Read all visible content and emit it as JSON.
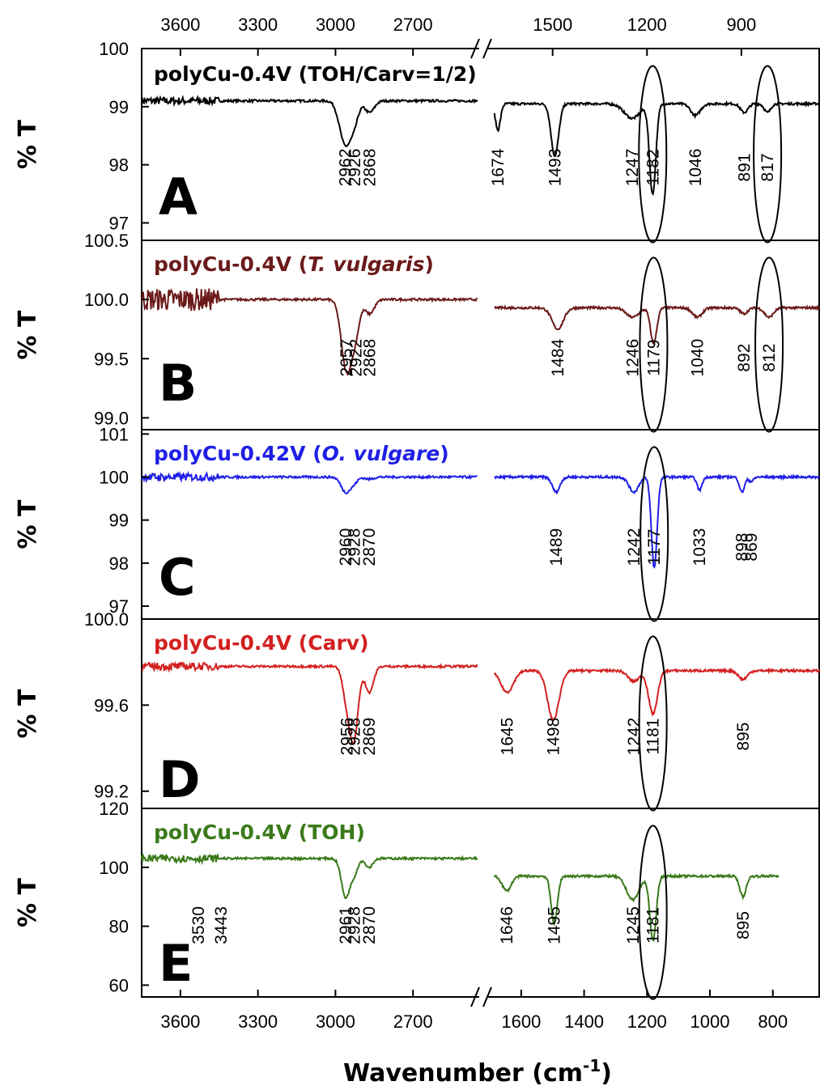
{
  "chart_data": {
    "type": "line",
    "xlabel": "Wavenumber (cm",
    "xlabel_sup": "-1",
    "xlabel_close": ")",
    "ylabel": "% T",
    "x_axis_break": true,
    "x_range_left": [
      3750,
      2450
    ],
    "x_range_right": [
      1700,
      650
    ],
    "top_ticks_left": [
      "3600",
      "3300",
      "3000",
      "2700"
    ],
    "top_ticks_right": [
      "1500",
      "1200",
      "900"
    ],
    "bottom_ticks_left": [
      "3600",
      "3300",
      "3000",
      "2700"
    ],
    "bottom_ticks_right": [
      "1600",
      "1400",
      "1200",
      "1000",
      "800"
    ],
    "panels": [
      {
        "letter": "A",
        "title_parts": [
          {
            "text": "polyCu-0.4V (TOH/Carv=1/2)",
            "italic": false
          }
        ],
        "color": "#000000",
        "ylim": [
          96.7,
          100
        ],
        "yticks": [
          "100",
          "99",
          "98",
          "97"
        ],
        "peaks": [
          "2962",
          "2926",
          "2868",
          "1674",
          "1493",
          "1247",
          "1182",
          "1046",
          "891",
          "817"
        ],
        "ellipse_peaks": [
          "1182",
          "817"
        ],
        "baseline_left": 99.1,
        "baseline_right": 99.05,
        "bands": [
          {
            "x": 2962,
            "depth": 0.75,
            "width": 22
          },
          {
            "x": 2926,
            "depth": 0.3,
            "width": 16
          },
          {
            "x": 2868,
            "depth": 0.2,
            "width": 18
          },
          {
            "x": 1674,
            "depth": 0.45,
            "width": 8
          },
          {
            "x": 1493,
            "depth": 0.9,
            "width": 12
          },
          {
            "x": 1247,
            "depth": 0.25,
            "width": 25
          },
          {
            "x": 1182,
            "depth": 1.55,
            "width": 10
          },
          {
            "x": 1046,
            "depth": 0.2,
            "width": 15
          },
          {
            "x": 891,
            "depth": 0.15,
            "width": 12
          },
          {
            "x": 817,
            "depth": 0.15,
            "width": 10
          }
        ]
      },
      {
        "letter": "B",
        "title_parts": [
          {
            "text": "polyCu-0.4V (",
            "italic": false
          },
          {
            "text": "T. vulgaris",
            "italic": true
          },
          {
            "text": ")",
            "italic": false
          }
        ],
        "color": "#6b1a1a",
        "ylim": [
          98.9,
          100.5
        ],
        "yticks": [
          "100.5",
          "100.0",
          "99.5",
          "99.0"
        ],
        "peaks": [
          "2957",
          "2922",
          "2868",
          "1484",
          "1246",
          "1179",
          "1040",
          "892",
          "812"
        ],
        "ellipse_peaks": [
          "1179",
          "812"
        ],
        "baseline_left": 100.0,
        "baseline_right": 99.93,
        "bands": [
          {
            "x": 2957,
            "depth": 0.6,
            "width": 20
          },
          {
            "x": 2922,
            "depth": 0.25,
            "width": 16
          },
          {
            "x": 2868,
            "depth": 0.12,
            "width": 18
          },
          {
            "x": 1484,
            "depth": 0.18,
            "width": 18
          },
          {
            "x": 1246,
            "depth": 0.08,
            "width": 20
          },
          {
            "x": 1179,
            "depth": 0.3,
            "width": 10
          },
          {
            "x": 1040,
            "depth": 0.08,
            "width": 15
          },
          {
            "x": 892,
            "depth": 0.05,
            "width": 12
          },
          {
            "x": 812,
            "depth": 0.08,
            "width": 14
          }
        ]
      },
      {
        "letter": "C",
        "title_parts": [
          {
            "text": "polyCu-0.42V (",
            "italic": false
          },
          {
            "text": "O. vulgare",
            "italic": true
          },
          {
            "text": ")",
            "italic": false
          }
        ],
        "color": "#1f1fe6",
        "ylim": [
          96.7,
          101.1
        ],
        "yticks": [
          "101",
          "100",
          "99",
          "98",
          "97"
        ],
        "peaks": [
          "2960",
          "2928",
          "2870",
          "1489",
          "1242",
          "1177",
          "1033",
          "898",
          "869"
        ],
        "ellipse_peaks": [
          "1177"
        ],
        "baseline_left": 100.0,
        "baseline_right": 100.0,
        "bands": [
          {
            "x": 2960,
            "depth": 0.35,
            "width": 18
          },
          {
            "x": 2928,
            "depth": 0.12,
            "width": 14
          },
          {
            "x": 2870,
            "depth": 0.05,
            "width": 16
          },
          {
            "x": 1489,
            "depth": 0.35,
            "width": 12
          },
          {
            "x": 1242,
            "depth": 0.35,
            "width": 15
          },
          {
            "x": 1177,
            "depth": 2.1,
            "width": 9
          },
          {
            "x": 1033,
            "depth": 0.3,
            "width": 8
          },
          {
            "x": 898,
            "depth": 0.35,
            "width": 8
          },
          {
            "x": 869,
            "depth": 0.1,
            "width": 8
          }
        ]
      },
      {
        "letter": "D",
        "title_parts": [
          {
            "text": "polyCu-0.4V (Carv)",
            "italic": false
          }
        ],
        "color": "#d32020",
        "ylim": [
          99.12,
          100.0
        ],
        "yticks": [
          "100.0",
          "99.6",
          "99.2"
        ],
        "peaks": [
          "2956",
          "2928",
          "2869",
          "1645",
          "1498",
          "1242",
          "1181",
          "895"
        ],
        "ellipse_peaks": [
          "1181"
        ],
        "baseline_left": 99.78,
        "baseline_right": 99.76,
        "bands": [
          {
            "x": 2956,
            "depth": 0.15,
            "width": 16
          },
          {
            "x": 2928,
            "depth": 0.32,
            "width": 16
          },
          {
            "x": 2869,
            "depth": 0.12,
            "width": 16
          },
          {
            "x": 1645,
            "depth": 0.1,
            "width": 20
          },
          {
            "x": 1498,
            "depth": 0.23,
            "width": 18
          },
          {
            "x": 1242,
            "depth": 0.05,
            "width": 18
          },
          {
            "x": 1181,
            "depth": 0.2,
            "width": 14
          },
          {
            "x": 895,
            "depth": 0.04,
            "width": 14
          }
        ]
      },
      {
        "letter": "E",
        "title_parts": [
          {
            "text": "polyCu-0.4V (TOH)",
            "italic": false
          }
        ],
        "color": "#3a7a1a",
        "ylim": [
          56,
          120
        ],
        "yticks": [
          "120",
          "100",
          "80",
          "60"
        ],
        "peaks": [
          "3530",
          "3443",
          "2961",
          "2928",
          "2870",
          "1646",
          "1495",
          "1245",
          "1181",
          "895"
        ],
        "ellipse_peaks": [
          "1181"
        ],
        "baseline_left": 103,
        "baseline_right": 97,
        "bands": [
          {
            "x": 2961,
            "depth": 13,
            "width": 16
          },
          {
            "x": 2928,
            "depth": 5,
            "width": 14
          },
          {
            "x": 2870,
            "depth": 3,
            "width": 14
          },
          {
            "x": 1646,
            "depth": 5,
            "width": 14
          },
          {
            "x": 1495,
            "depth": 16,
            "width": 10
          },
          {
            "x": 1245,
            "depth": 8,
            "width": 20
          },
          {
            "x": 1181,
            "depth": 22,
            "width": 10
          },
          {
            "x": 895,
            "depth": 7,
            "width": 10
          }
        ]
      }
    ]
  }
}
